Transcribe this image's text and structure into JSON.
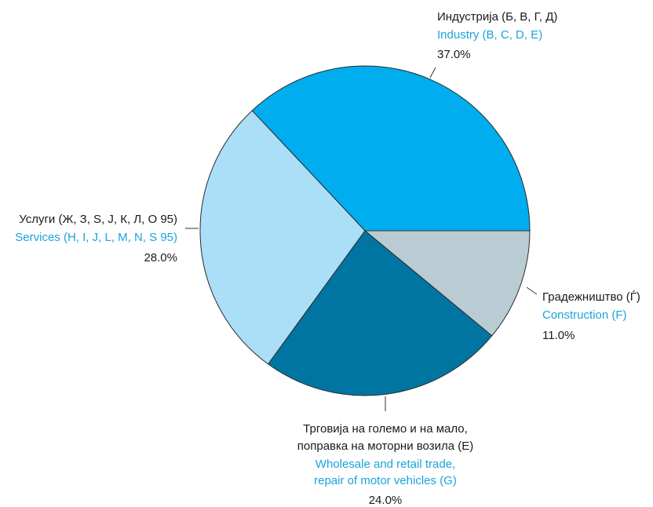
{
  "chart_data": {
    "type": "pie",
    "slices": [
      {
        "mk_lines": [
          "Индустрија (Б, В, Г, Д)"
        ],
        "en_lines": [
          "Industry (B, C, D, E)"
        ],
        "value_label": "37.0%",
        "value": 37.0,
        "color": "#00adef"
      },
      {
        "mk_lines": [
          "Градежништво (Ѓ)"
        ],
        "en_lines": [
          "Construction (F)"
        ],
        "value_label": "11.0%",
        "value": 11.0,
        "color": "#b9cbd3"
      },
      {
        "mk_lines": [
          "Трговија на големо и на мало,",
          "поправка на моторни возила (Е)"
        ],
        "en_lines": [
          "Wholesale and retail trade,",
          "repair of motor vehicles (G)"
        ],
        "value_label": "24.0%",
        "value": 24.0,
        "color": "#0075a2"
      },
      {
        "mk_lines": [
          "Услуги (Ж, З, Ѕ, Ј, К, Л, О 95)"
        ],
        "en_lines": [
          "Services (H, I, J, L, M, N, S 95)"
        ],
        "value_label": "28.0%",
        "value": 28.0,
        "color": "#abdff7"
      }
    ]
  }
}
